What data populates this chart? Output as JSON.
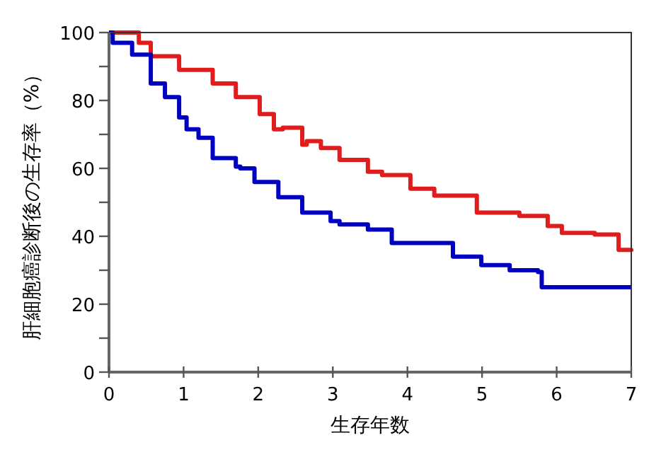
{
  "chart_data": {
    "type": "step",
    "xlabel": "生存年数",
    "ylabel": "肝細胞癌診断後の生存率（%）",
    "xlim": [
      0,
      7
    ],
    "ylim": [
      0,
      100
    ],
    "xticks": [
      0,
      1,
      2,
      3,
      4,
      5,
      6,
      7
    ],
    "yticks": [
      0,
      {
        "value": 10,
        "label": null
      },
      20,
      {
        "value": 30,
        "label": null
      },
      40,
      {
        "value": 50,
        "label": null
      },
      60,
      {
        "value": 70,
        "label": null
      },
      80,
      {
        "value": 90,
        "label": null
      },
      100
    ],
    "grid": false,
    "line_style": "solid",
    "marker": "none",
    "series": [
      {
        "color": "#e01c1c",
        "x": [
          0,
          0.4,
          0.56,
          0.94,
          1.39,
          1.7,
          2.02,
          2.21,
          2.33,
          2.59,
          2.65,
          2.84,
          2.97,
          3.09,
          3.15,
          3.47,
          3.66,
          4.04,
          4.36,
          4.93,
          5.5,
          5.88,
          6.07,
          6.51,
          6.83,
          7
        ],
        "values": [
          100,
          97,
          93,
          89,
          85,
          81,
          76,
          71.5,
          72,
          67,
          68,
          66,
          66,
          62.5,
          62.5,
          59,
          58,
          54,
          52,
          47,
          46,
          43,
          41,
          40.5,
          36,
          35.5
        ]
      },
      {
        "color": "#0000c0",
        "x": [
          0,
          0.05,
          0.31,
          0.56,
          0.75,
          0.94,
          1.04,
          1.2,
          1.39,
          1.45,
          1.7,
          1.76,
          1.95,
          2.27,
          2.59,
          2.97,
          3.09,
          3.47,
          3.79,
          4.17,
          4.61,
          4.99,
          5.37,
          5.75,
          5.8,
          7
        ],
        "values": [
          100,
          97,
          93.5,
          85,
          81,
          75,
          71.5,
          69,
          63,
          63,
          60.5,
          60,
          56,
          51.5,
          47,
          44.5,
          43.5,
          42,
          38,
          38,
          34,
          31.5,
          30,
          29.5,
          25,
          25
        ]
      }
    ]
  }
}
